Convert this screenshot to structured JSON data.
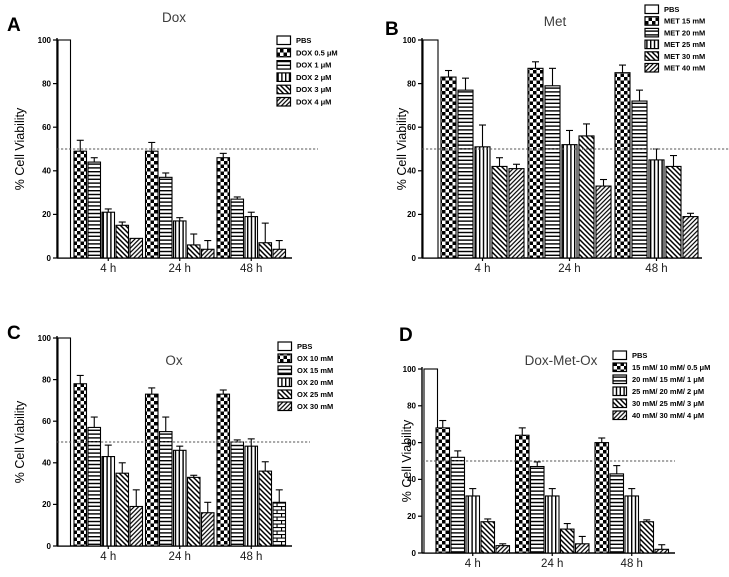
{
  "figure": {
    "background": "#ffffff",
    "ink_color": "#000000",
    "title_color": "#3d3d3d",
    "reference_line_color": "#555555"
  },
  "chart_data": [
    {
      "panel_letter": "A",
      "type": "bar",
      "title": "Dox",
      "ylabel": "% Cell Viability",
      "ylim": [
        0,
        100
      ],
      "yticks": [
        0,
        20,
        40,
        60,
        80,
        100
      ],
      "categories": [
        "4 h",
        "24 h",
        "48 h"
      ],
      "reference_line": 50,
      "grid": false,
      "legend_position": "top-right",
      "control": {
        "name": "PBS",
        "pattern": "open",
        "value": 100,
        "error": 0
      },
      "series": [
        {
          "name": "DOX 0.5 μM",
          "pattern": "checker",
          "values": [
            49,
            49,
            46
          ],
          "errors": [
            5,
            4,
            2
          ]
        },
        {
          "name": "DOX 1 μM",
          "pattern": "hlines",
          "values": [
            44,
            37,
            27
          ],
          "errors": [
            2,
            2,
            1
          ]
        },
        {
          "name": "DOX 2 μM",
          "pattern": "vlines",
          "values": [
            21,
            17,
            19
          ],
          "errors": [
            1.5,
            1.5,
            2
          ]
        },
        {
          "name": "DOX 3 μM",
          "pattern": "bslash",
          "values": [
            15,
            6,
            7
          ],
          "errors": [
            1.5,
            5,
            9
          ]
        },
        {
          "name": "DOX 4 μM",
          "pattern": "fslash",
          "values": [
            9,
            4,
            4
          ],
          "errors": [
            0,
            4,
            4
          ]
        }
      ]
    },
    {
      "panel_letter": "B",
      "type": "bar",
      "title": "Met",
      "ylabel": "% Cell Viability",
      "ylim": [
        0,
        100
      ],
      "yticks": [
        0,
        20,
        40,
        60,
        80,
        100
      ],
      "categories": [
        "4 h",
        "24 h",
        "48 h"
      ],
      "reference_line": 50,
      "grid": false,
      "legend_position": "top-right",
      "control": {
        "name": "PBS",
        "pattern": "open",
        "value": 100,
        "error": 0
      },
      "series": [
        {
          "name": "MET 15 mM",
          "pattern": "checker",
          "values": [
            83,
            87,
            85
          ],
          "errors": [
            3,
            3,
            3.5
          ]
        },
        {
          "name": "MET 20 mM",
          "pattern": "hlines",
          "values": [
            77,
            79,
            72
          ],
          "errors": [
            5.5,
            8,
            5
          ]
        },
        {
          "name": "MET 25 mM",
          "pattern": "vlines",
          "values": [
            51,
            52,
            45
          ],
          "errors": [
            10,
            6.5,
            5
          ]
        },
        {
          "name": "MET 30 mM",
          "pattern": "bslash",
          "values": [
            42,
            56,
            42
          ],
          "errors": [
            4,
            5.5,
            5
          ]
        },
        {
          "name": "MET 40 mM",
          "pattern": "fslash",
          "values": [
            41,
            33,
            19
          ],
          "errors": [
            2,
            3,
            1.5
          ]
        }
      ]
    },
    {
      "panel_letter": "C",
      "type": "bar",
      "title": "Ox",
      "ylabel": "% Cell Viability",
      "ylim": [
        0,
        100
      ],
      "yticks": [
        0,
        20,
        40,
        60,
        80,
        100
      ],
      "categories": [
        "4 h",
        "24 h",
        "48 h"
      ],
      "reference_line": 50,
      "grid": false,
      "legend_position": "top-right",
      "control": {
        "name": "PBS",
        "pattern": "open",
        "value": 100,
        "error": 0
      },
      "series": [
        {
          "name": "OX 10 mM",
          "pattern": "checker",
          "values": [
            78,
            73,
            73
          ],
          "errors": [
            4,
            3,
            2
          ]
        },
        {
          "name": "OX 15 mM",
          "pattern": "hlines",
          "values": [
            57,
            55,
            50
          ],
          "errors": [
            5,
            7,
            1
          ]
        },
        {
          "name": "OX 20 mM",
          "pattern": "vlines",
          "values": [
            43,
            46,
            48
          ],
          "errors": [
            5.5,
            2,
            3.5
          ]
        },
        {
          "name": "OX 25 mM",
          "pattern": "bslash",
          "values": [
            35,
            33,
            36
          ],
          "errors": [
            5,
            1,
            4.5
          ]
        },
        {
          "name": "OX 30 mM",
          "pattern": "fslash",
          "values": [
            19,
            16,
            21
          ],
          "errors": [
            8,
            5,
            6
          ],
          "value_patterns": [
            "fslash",
            "fslash",
            "brick"
          ]
        }
      ]
    },
    {
      "panel_letter": "D",
      "type": "bar",
      "title": "Dox-Met-Ox",
      "ylabel": "% Cell Viability",
      "ylim": [
        0,
        100
      ],
      "yticks": [
        0,
        20,
        40,
        60,
        80,
        100
      ],
      "categories": [
        "4 h",
        "24 h",
        "48 h"
      ],
      "reference_line": 50,
      "grid": false,
      "legend_position": "top-right",
      "control": {
        "name": "PBS",
        "pattern": "open",
        "value": 100,
        "error": 0
      },
      "series": [
        {
          "name": "15 mM/ 10 mM/ 0.5 μM",
          "pattern": "checker",
          "values": [
            68,
            64,
            60
          ],
          "errors": [
            4,
            4,
            2.5
          ]
        },
        {
          "name": "20 mM/ 15 mM/ 1 μM",
          "pattern": "hlines",
          "values": [
            52,
            47,
            43
          ],
          "errors": [
            3.5,
            2.5,
            4.5
          ]
        },
        {
          "name": "25 mM/ 20 mM/ 2 μM",
          "pattern": "vlines",
          "values": [
            31,
            31,
            31
          ],
          "errors": [
            4,
            4,
            4
          ]
        },
        {
          "name": "30 mM/ 25 mM/ 3 μM",
          "pattern": "bslash",
          "values": [
            17,
            13,
            17
          ],
          "errors": [
            1.5,
            3,
            1
          ]
        },
        {
          "name": "40 mM/ 30 mM/ 4 μM",
          "pattern": "fslash",
          "values": [
            4,
            5,
            2
          ],
          "errors": [
            1,
            4,
            2.5
          ]
        }
      ]
    }
  ]
}
